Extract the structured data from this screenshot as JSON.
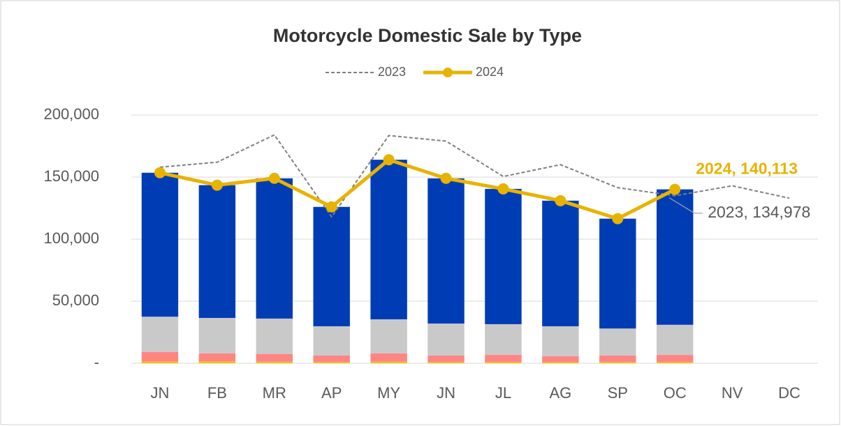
{
  "chart_data": {
    "type": "combo",
    "title": "Motorcycle Domestic Sale by Type",
    "stacked": true,
    "grid": true,
    "legend": "top",
    "categories": [
      "JN",
      "FB",
      "MR",
      "AP",
      "MY",
      "JN",
      "JL",
      "AG",
      "SP",
      "OC",
      "NV",
      "DC"
    ],
    "ylim": [
      0,
      200000
    ],
    "yticks": [
      {
        "value": 0,
        "label": "-"
      },
      {
        "value": 50000,
        "label": "50,000"
      },
      {
        "value": 100000,
        "label": "100,000"
      },
      {
        "value": 150000,
        "label": "150,000"
      },
      {
        "value": 200000,
        "label": "200,000"
      }
    ],
    "series": [
      {
        "type": "bar",
        "color": "#f2c200",
        "values": [
          1500,
          1500,
          1200,
          1000,
          1300,
          1000,
          1000,
          900,
          1000,
          1000,
          null,
          null
        ]
      },
      {
        "type": "bar",
        "color": "#ff8585",
        "values": [
          7500,
          6500,
          6300,
          5200,
          6600,
          5200,
          5700,
          4700,
          5200,
          5700,
          null,
          null
        ]
      },
      {
        "type": "bar",
        "color": "#c9c9c9",
        "values": [
          28500,
          28500,
          28500,
          23600,
          27500,
          25800,
          24800,
          24200,
          21800,
          24300,
          null,
          null
        ]
      },
      {
        "type": "bar",
        "color": "#003db5",
        "values": [
          116000,
          107000,
          113000,
          96200,
          128600,
          117000,
          109000,
          101200,
          88500,
          109113,
          null,
          null
        ]
      },
      {
        "type": "line",
        "name": "2023",
        "color": "#7f7f7f",
        "dashed": true,
        "marker": false,
        "values": [
          158000,
          162000,
          184000,
          118000,
          183500,
          179000,
          150500,
          160000,
          141500,
          134978,
          143000,
          133000
        ],
        "value_labels": [
          null,
          null,
          null,
          null,
          null,
          null,
          null,
          null,
          null,
          "2023, 134,978",
          null,
          null
        ]
      },
      {
        "type": "line",
        "name": "2024",
        "color": "#e8b300",
        "dashed": false,
        "marker": true,
        "values": [
          153500,
          143500,
          149000,
          126000,
          164000,
          149000,
          140500,
          131000,
          116500,
          140113,
          null,
          null
        ],
        "value_labels": [
          null,
          null,
          null,
          null,
          null,
          null,
          null,
          null,
          null,
          "2024, 140,113",
          null,
          null
        ]
      }
    ]
  }
}
